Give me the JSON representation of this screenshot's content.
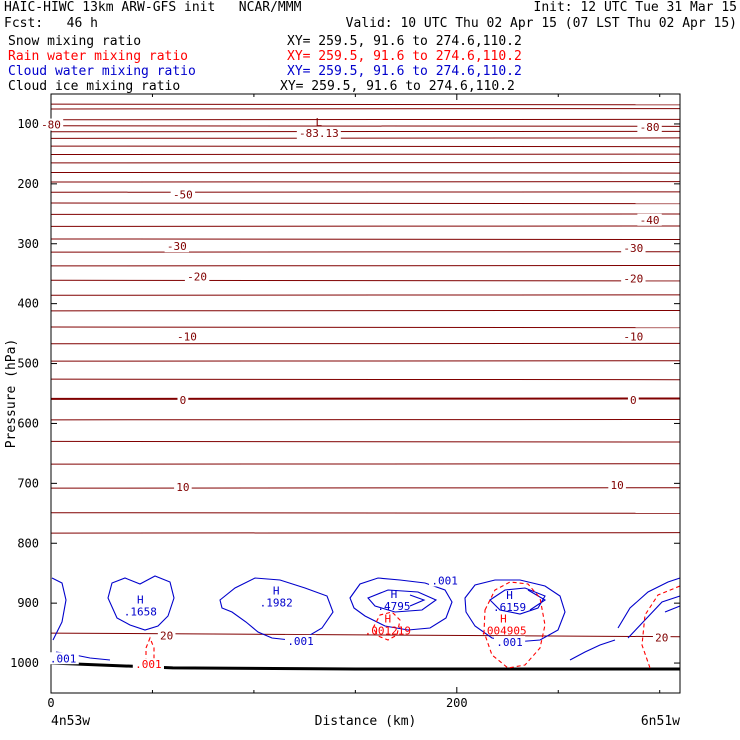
{
  "header": {
    "title_left": "HAIC-HIWC 13km ARW-GFS init   NCAR/MMM",
    "init": "Init: 12 UTC Tue 31 Mar 15",
    "fcst": "Fcst:   46 h",
    "valid": "Valid: 10 UTC Thu 02 Apr 15 (07 LST Thu 02 Apr 15)",
    "fields": [
      {
        "name": "Snow mixing ratio",
        "xy": "XY= 259.5, 91.6 to 274.6,110.2",
        "color": "#000000"
      },
      {
        "name": "Rain water mixing ratio",
        "xy": "XY= 259.5, 91.6 to 274.6,110.2",
        "color": "#ff0000"
      },
      {
        "name": "Cloud water mixing ratio",
        "xy": "XY= 259.5, 91.6 to 274.6,110.2",
        "color": "#0000cc"
      },
      {
        "name": "Cloud ice mixing ratio",
        "xy": "XY= 259.5, 91.6 to 274.6,110.2",
        "color": "#000000"
      }
    ]
  },
  "chart_data": {
    "type": "contour-cross-section",
    "ylabel": "Pressure (hPa)",
    "xlabel": "Distance (km)",
    "x_ticks": [
      0,
      200
    ],
    "x_range": [
      0,
      310
    ],
    "y_ticks": [
      100,
      200,
      300,
      400,
      500,
      600,
      700,
      800,
      900,
      1000
    ],
    "y_range": [
      50,
      1050
    ],
    "endpoints": {
      "left": "4n53w",
      "right": "6n51w"
    },
    "temperature": {
      "color": "#800000",
      "isotherm_levels": [
        67,
        75,
        93,
        103,
        113,
        124,
        137,
        151,
        165,
        181,
        197,
        214,
        232,
        251,
        271,
        292,
        314,
        337,
        361,
        386,
        412,
        439,
        467,
        496,
        526,
        559,
        594,
        630,
        668,
        708,
        749,
        783
      ],
      "zero_line": 559,
      "labels": [
        {
          "text": "-80",
          "x": 0,
          "p": 101
        },
        {
          "text": "-80",
          "x": 295,
          "p": 105
        },
        {
          "text": "-50",
          "x": 65,
          "p": 218
        },
        {
          "text": "-40",
          "x": 295,
          "p": 260
        },
        {
          "text": "-30",
          "x": 62,
          "p": 304
        },
        {
          "text": "-30",
          "x": 287,
          "p": 307
        },
        {
          "text": "-20",
          "x": 72,
          "p": 355
        },
        {
          "text": "-20",
          "x": 287,
          "p": 358
        },
        {
          "text": "-10",
          "x": 67,
          "p": 455
        },
        {
          "text": "-10",
          "x": 287,
          "p": 455
        },
        {
          "text": "0",
          "x": 65,
          "p": 561
        },
        {
          "text": "0",
          "x": 287,
          "p": 561
        },
        {
          "text": "10",
          "x": 65,
          "p": 706
        },
        {
          "text": "10",
          "x": 279,
          "p": 703
        },
        {
          "text": "20",
          "x": 57,
          "p": 954
        },
        {
          "text": "20",
          "x": 301,
          "p": 957
        }
      ],
      "min_label": {
        "symbol": "L",
        "value": "-83.13",
        "x": 132,
        "p": 85
      }
    },
    "cloud_water": {
      "color": "#0000cc",
      "maxima": [
        {
          "symbol": "H",
          "value": ".1658",
          "x": 44,
          "p": 904
        },
        {
          "symbol": "H",
          "value": ".1982",
          "x": 111,
          "p": 889
        },
        {
          "symbol": "H",
          "value": ".4795",
          "x": 169,
          "p": 895
        },
        {
          "symbol": "H",
          "value": ".6159",
          "x": 226,
          "p": 896
        }
      ],
      "contour_labels": [
        {
          "text": ".001",
          "x": 6,
          "p": 992
        },
        {
          "text": ".001",
          "x": 123,
          "p": 963
        },
        {
          "text": ".001",
          "x": 194,
          "p": 862
        },
        {
          "text": ".001",
          "x": 226,
          "p": 965
        }
      ]
    },
    "rain_water": {
      "color": "#ff0000",
      "maxima": [
        {
          "symbol": "H",
          "value": ".001219",
          "x": 166,
          "p": 936
        },
        {
          "symbol": "H",
          "value": ".004905",
          "x": 223,
          "p": 936
        }
      ],
      "contour_labels": [
        {
          "text": ".001",
          "x": 48,
          "p": 1002
        }
      ]
    }
  }
}
